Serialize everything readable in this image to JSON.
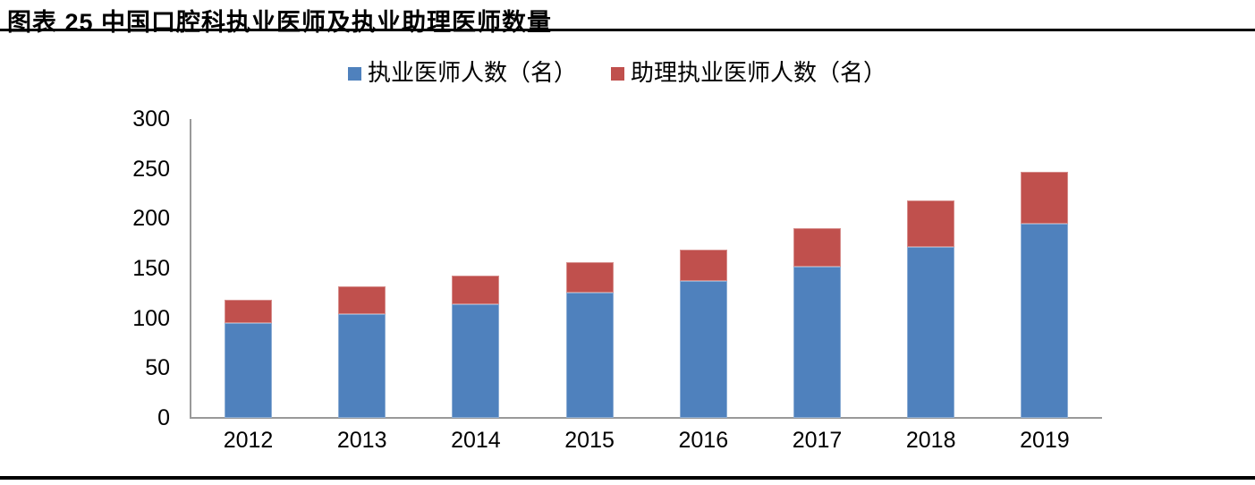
{
  "page": {
    "title": "图表 25 中国口腔科执业医师及执业助理医师数量"
  },
  "chart_data": {
    "type": "bar",
    "stacked": true,
    "title": "图表 25 中国口腔科执业医师及执业助理医师数量",
    "categories": [
      "2012",
      "2013",
      "2014",
      "2015",
      "2016",
      "2017",
      "2018",
      "2019"
    ],
    "series": [
      {
        "name": "执业医师人数（名）",
        "color": "#4F81BD",
        "values": [
          95,
          104,
          114,
          126,
          137,
          152,
          172,
          195
        ]
      },
      {
        "name": "助理执业医师人数（名）",
        "color": "#C0504D",
        "values": [
          24,
          28,
          29,
          30,
          32,
          38,
          46,
          52
        ]
      }
    ],
    "totals": [
      119,
      132,
      143,
      156,
      169,
      190,
      218,
      247
    ],
    "xlabel": "",
    "ylabel": "",
    "ylim": [
      0,
      300
    ],
    "yticks": [
      "0",
      "50",
      "100",
      "150",
      "200",
      "250",
      "300"
    ],
    "grid": false,
    "legend_position": "top-center"
  },
  "colors": {
    "series_blue": "#4F81BD",
    "series_red": "#C0504D",
    "axis": "#999999",
    "rule": "#000000",
    "text": "#000000",
    "background": "#FFFFFF"
  }
}
